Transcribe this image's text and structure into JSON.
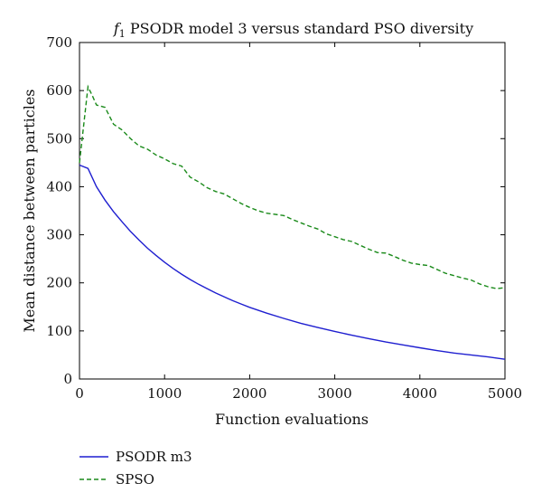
{
  "chart_data": {
    "type": "line",
    "title_prefix": "f",
    "title_subscript": "1",
    "title": " PSODR model 3 versus standard PSO diversity",
    "xlabel": "Function evaluations",
    "ylabel": "Mean distance between particles",
    "xlim": [
      0,
      5000
    ],
    "ylim": [
      0,
      700
    ],
    "xticks": [
      0,
      1000,
      2000,
      3000,
      4000,
      5000
    ],
    "yticks": [
      0,
      100,
      200,
      300,
      400,
      500,
      600,
      700
    ],
    "grid": false,
    "legend_position": "bottom-left, below plot",
    "series": [
      {
        "name": "PSODR m3",
        "color": "#1f1fd0",
        "style": "solid",
        "points": [
          [
            0,
            445
          ],
          [
            100,
            438
          ],
          [
            200,
            400
          ],
          [
            300,
            372
          ],
          [
            400,
            348
          ],
          [
            500,
            327
          ],
          [
            600,
            307
          ],
          [
            700,
            289
          ],
          [
            800,
            272
          ],
          [
            900,
            257
          ],
          [
            1000,
            243
          ],
          [
            1100,
            230
          ],
          [
            1200,
            218
          ],
          [
            1300,
            207
          ],
          [
            1400,
            197
          ],
          [
            1500,
            188
          ],
          [
            1600,
            179
          ],
          [
            1700,
            171
          ],
          [
            1800,
            163
          ],
          [
            1900,
            156
          ],
          [
            2000,
            149
          ],
          [
            2200,
            137
          ],
          [
            2400,
            126
          ],
          [
            2600,
            116
          ],
          [
            2800,
            107
          ],
          [
            3000,
            99
          ],
          [
            3200,
            91
          ],
          [
            3400,
            84
          ],
          [
            3600,
            77
          ],
          [
            3800,
            71
          ],
          [
            4000,
            65
          ],
          [
            4200,
            59
          ],
          [
            4400,
            54
          ],
          [
            4600,
            50
          ],
          [
            4800,
            46
          ],
          [
            5000,
            41
          ]
        ]
      },
      {
        "name": "SPSO",
        "color": "#1a8a1a",
        "style": "dashed",
        "points": [
          [
            0,
            450
          ],
          [
            100,
            608
          ],
          [
            150,
            590
          ],
          [
            200,
            570
          ],
          [
            300,
            565
          ],
          [
            400,
            530
          ],
          [
            500,
            518
          ],
          [
            600,
            500
          ],
          [
            700,
            485
          ],
          [
            800,
            478
          ],
          [
            900,
            466
          ],
          [
            1000,
            458
          ],
          [
            1100,
            448
          ],
          [
            1200,
            443
          ],
          [
            1300,
            420
          ],
          [
            1400,
            410
          ],
          [
            1500,
            398
          ],
          [
            1600,
            390
          ],
          [
            1700,
            385
          ],
          [
            1800,
            375
          ],
          [
            1900,
            365
          ],
          [
            2000,
            357
          ],
          [
            2100,
            350
          ],
          [
            2200,
            345
          ],
          [
            2400,
            340
          ],
          [
            2500,
            332
          ],
          [
            2600,
            325
          ],
          [
            2700,
            318
          ],
          [
            2800,
            312
          ],
          [
            2900,
            302
          ],
          [
            3000,
            296
          ],
          [
            3100,
            290
          ],
          [
            3200,
            286
          ],
          [
            3300,
            278
          ],
          [
            3400,
            270
          ],
          [
            3500,
            263
          ],
          [
            3600,
            262
          ],
          [
            3700,
            255
          ],
          [
            3800,
            247
          ],
          [
            3900,
            241
          ],
          [
            4000,
            238
          ],
          [
            4100,
            236
          ],
          [
            4200,
            228
          ],
          [
            4300,
            220
          ],
          [
            4400,
            215
          ],
          [
            4500,
            210
          ],
          [
            4600,
            206
          ],
          [
            4700,
            198
          ],
          [
            4800,
            192
          ],
          [
            4900,
            188
          ],
          [
            5000,
            190
          ]
        ]
      }
    ]
  }
}
